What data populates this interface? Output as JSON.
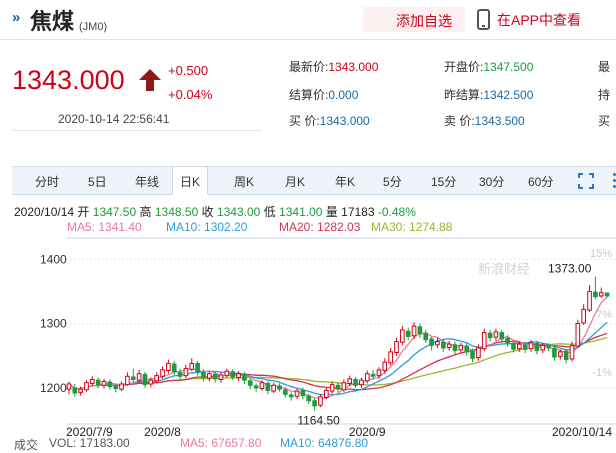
{
  "header": {
    "chevron": "»",
    "name": "焦煤",
    "code": "(JM0)",
    "add_favorite": "添加自选",
    "app_link": "在APP中查看"
  },
  "quote": {
    "price": "1343.000",
    "change": "+0.500",
    "change_pct": "+0.04%",
    "timestamp": "2020-10-14  22:56:41",
    "fields": {
      "latest_label": "最新价:",
      "latest_value": "1343.000",
      "open_label": "开盘价:",
      "open_value": "1347.500",
      "col3_top": "最",
      "settle_label": "结算价:",
      "settle_value": "0.000",
      "prev_settle_label": "昨结算:",
      "prev_settle_value": "1342.500",
      "col3_mid": "持",
      "buy_label": "买    价:",
      "buy_value": "1343.000",
      "sell_label": "卖    价:",
      "sell_value": "1343.500",
      "col3_bot": "买"
    }
  },
  "tabs": [
    "分时",
    "5日",
    "年线",
    "日K",
    "周K",
    "月K",
    "年K",
    "5分",
    "15分",
    "30分",
    "60分"
  ],
  "active_tab": "日K",
  "info": {
    "date": "2020/10/14",
    "open_label": "开",
    "open": "1347.50",
    "high_label": "高",
    "high": "1348.50",
    "close_label": "收",
    "close": "1343.00",
    "low_label": "低",
    "low": "1341.00",
    "vol_label": "量",
    "vol": "17183",
    "pct": "-0.48%"
  },
  "ma": {
    "ma5": "MA5: 1341.40",
    "ma10": "MA10: 1302.20",
    "ma20": "MA20: 1282.03",
    "ma30": "MA30: 1274.88"
  },
  "colors": {
    "up": "#d0021b",
    "down": "#1e9b3c",
    "ma5": "#e97aa0",
    "ma10": "#2a9fd6",
    "ma20": "#d2344f",
    "ma30": "#9cb52b"
  },
  "chart_data": {
    "type": "candlestick",
    "y_ticks": [
      "1400",
      "1300",
      "1200"
    ],
    "x_labels": [
      "2020/7/9",
      "2020/8",
      "2020/9",
      "2020/10/14"
    ],
    "right_pct_ticks": [
      "15%",
      "7%",
      "-1%"
    ],
    "max_label": "1373.00",
    "min_label": "1164.50",
    "watermark": "新浪财经",
    "ylim": [
      1150,
      1430
    ],
    "candles": [
      [
        1198,
        1206,
        1190,
        1210
      ],
      [
        1200,
        1192,
        1186,
        1206
      ],
      [
        1193,
        1198,
        1188,
        1202
      ],
      [
        1197,
        1208,
        1194,
        1212
      ],
      [
        1207,
        1213,
        1203,
        1218
      ],
      [
        1212,
        1205,
        1200,
        1216
      ],
      [
        1204,
        1210,
        1199,
        1214
      ],
      [
        1209,
        1202,
        1197,
        1213
      ],
      [
        1203,
        1199,
        1193,
        1207
      ],
      [
        1198,
        1206,
        1195,
        1210
      ],
      [
        1205,
        1218,
        1203,
        1224
      ],
      [
        1217,
        1213,
        1208,
        1230
      ],
      [
        1212,
        1222,
        1208,
        1228
      ],
      [
        1221,
        1205,
        1200,
        1225
      ],
      [
        1206,
        1212,
        1201,
        1216
      ],
      [
        1211,
        1219,
        1208,
        1224
      ],
      [
        1218,
        1228,
        1214,
        1233
      ],
      [
        1227,
        1238,
        1222,
        1244
      ],
      [
        1237,
        1225,
        1220,
        1242
      ],
      [
        1224,
        1218,
        1213,
        1230
      ],
      [
        1219,
        1230,
        1215,
        1236
      ],
      [
        1229,
        1238,
        1226,
        1246
      ],
      [
        1238,
        1225,
        1219,
        1242
      ],
      [
        1224,
        1216,
        1210,
        1229
      ],
      [
        1215,
        1222,
        1210,
        1226
      ],
      [
        1221,
        1214,
        1208,
        1225
      ],
      [
        1213,
        1220,
        1208,
        1224
      ],
      [
        1219,
        1226,
        1216,
        1230
      ],
      [
        1225,
        1217,
        1212,
        1229
      ],
      [
        1216,
        1222,
        1210,
        1226
      ],
      [
        1221,
        1212,
        1206,
        1225
      ],
      [
        1211,
        1204,
        1198,
        1215
      ],
      [
        1203,
        1200,
        1194,
        1207
      ],
      [
        1199,
        1208,
        1196,
        1212
      ],
      [
        1207,
        1196,
        1190,
        1210
      ],
      [
        1195,
        1204,
        1192,
        1208
      ],
      [
        1203,
        1198,
        1194,
        1207
      ],
      [
        1197,
        1190,
        1185,
        1201
      ],
      [
        1189,
        1186,
        1180,
        1193
      ],
      [
        1187,
        1195,
        1183,
        1199
      ],
      [
        1196,
        1188,
        1182,
        1200
      ],
      [
        1187,
        1180,
        1175,
        1191
      ],
      [
        1180,
        1172,
        1164.5,
        1184
      ],
      [
        1173,
        1186,
        1170,
        1190
      ],
      [
        1185,
        1196,
        1182,
        1200
      ],
      [
        1195,
        1205,
        1191,
        1210
      ],
      [
        1204,
        1198,
        1193,
        1209
      ],
      [
        1197,
        1208,
        1194,
        1213
      ],
      [
        1207,
        1214,
        1203,
        1219
      ],
      [
        1213,
        1204,
        1200,
        1217
      ],
      [
        1205,
        1212,
        1200,
        1216
      ],
      [
        1211,
        1222,
        1207,
        1227
      ],
      [
        1221,
        1218,
        1213,
        1228
      ],
      [
        1219,
        1228,
        1214,
        1232
      ],
      [
        1227,
        1240,
        1222,
        1246
      ],
      [
        1239,
        1256,
        1235,
        1262
      ],
      [
        1255,
        1272,
        1250,
        1278
      ],
      [
        1271,
        1290,
        1266,
        1296
      ],
      [
        1288,
        1280,
        1274,
        1294
      ],
      [
        1281,
        1296,
        1276,
        1302
      ],
      [
        1295,
        1284,
        1278,
        1300
      ],
      [
        1285,
        1275,
        1270,
        1290
      ],
      [
        1276,
        1266,
        1258,
        1280
      ],
      [
        1267,
        1272,
        1262,
        1278
      ],
      [
        1271,
        1262,
        1256,
        1276
      ],
      [
        1263,
        1268,
        1258,
        1273
      ],
      [
        1267,
        1258,
        1252,
        1272
      ],
      [
        1259,
        1266,
        1254,
        1270
      ],
      [
        1265,
        1256,
        1250,
        1269
      ],
      [
        1257,
        1246,
        1240,
        1261
      ],
      [
        1247,
        1262,
        1242,
        1268
      ],
      [
        1261,
        1286,
        1257,
        1292
      ],
      [
        1285,
        1278,
        1272,
        1290
      ],
      [
        1279,
        1287,
        1274,
        1292
      ],
      [
        1286,
        1276,
        1270,
        1290
      ],
      [
        1277,
        1270,
        1264,
        1282
      ],
      [
        1269,
        1260,
        1255,
        1274
      ],
      [
        1261,
        1268,
        1256,
        1272
      ],
      [
        1267,
        1260,
        1254,
        1271
      ],
      [
        1261,
        1270,
        1256,
        1274
      ],
      [
        1269,
        1258,
        1252,
        1273
      ],
      [
        1259,
        1266,
        1254,
        1270
      ],
      [
        1265,
        1262,
        1257,
        1269
      ],
      [
        1261,
        1248,
        1242,
        1265
      ],
      [
        1249,
        1256,
        1244,
        1260
      ],
      [
        1257,
        1244,
        1238,
        1260
      ],
      [
        1245,
        1266,
        1241,
        1272
      ],
      [
        1265,
        1300,
        1262,
        1306
      ],
      [
        1301,
        1322,
        1298,
        1330
      ],
      [
        1321,
        1350,
        1318,
        1360
      ],
      [
        1349,
        1342,
        1338,
        1373
      ],
      [
        1343,
        1348,
        1340,
        1356
      ],
      [
        1347.5,
        1343,
        1341,
        1348.5
      ]
    ]
  },
  "volume": {
    "label": "成交",
    "vol": "VOL: 17183.00",
    "ma5": "MA5: 67657.80",
    "ma10": "MA10: 64876.80"
  }
}
